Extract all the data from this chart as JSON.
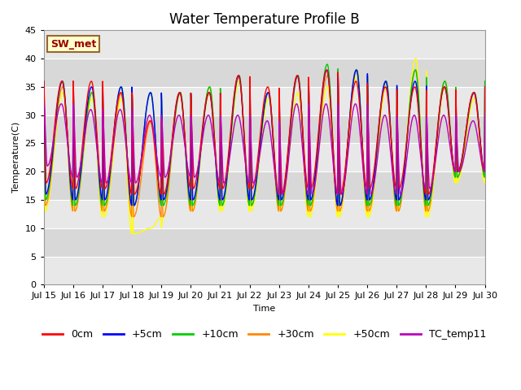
{
  "title": "Water Temperature Profile B",
  "xlabel": "Time",
  "ylabel": "Temperature(C)",
  "xlim": [
    0,
    15
  ],
  "ylim": [
    0,
    45
  ],
  "yticks": [
    0,
    5,
    10,
    15,
    20,
    25,
    30,
    35,
    40,
    45
  ],
  "xtick_labels": [
    "Jul 15",
    "Jul 16",
    "Jul 17",
    "Jul 18",
    "Jul 19",
    "Jul 20",
    "Jul 21",
    "Jul 22",
    "Jul 23",
    "Jul 24",
    "Jul 25",
    "Jul 26",
    "Jul 27",
    "Jul 28",
    "Jul 29",
    "Jul 30"
  ],
  "series_colors": {
    "0cm": "#ff0000",
    "+5cm": "#0000ff",
    "+10cm": "#00cc00",
    "+30cm": "#ff8800",
    "+50cm": "#ffff00",
    "TC_temp11": "#bb00bb"
  },
  "annotation_text": "SW_met",
  "annotation_color": "#990000",
  "annotation_bg": "#ffffcc",
  "annotation_border": "#996633",
  "band_colors": [
    "#e8e8e8",
    "#d8d8d8"
  ],
  "grid_color": "#ffffff",
  "title_fontsize": 12,
  "axis_fontsize": 8,
  "legend_fontsize": 9,
  "peaks_0cm": [
    36,
    36,
    34,
    29,
    34,
    34,
    37,
    35,
    37,
    38,
    36,
    35,
    35,
    35,
    34
  ],
  "troughs_0cm": [
    18,
    17,
    17,
    16,
    16,
    17,
    17,
    17,
    16,
    17,
    16,
    17,
    17,
    16,
    20
  ],
  "peaks_5cm": [
    36,
    35,
    35,
    34,
    34,
    34,
    37,
    34,
    37,
    38,
    38,
    36,
    36,
    35,
    34
  ],
  "troughs_5cm": [
    16,
    15,
    15,
    14,
    15,
    15,
    15,
    15,
    15,
    15,
    14,
    15,
    15,
    15,
    20
  ],
  "peaks_10cm": [
    36,
    34,
    35,
    34,
    34,
    35,
    37,
    34,
    37,
    39,
    38,
    36,
    38,
    36,
    34
  ],
  "troughs_10cm": [
    15,
    14,
    14,
    14,
    14,
    14,
    14,
    14,
    14,
    14,
    14,
    14,
    14,
    14,
    19
  ],
  "peaks_30cm": [
    35,
    34,
    34,
    29,
    34,
    35,
    37,
    34,
    37,
    37,
    38,
    36,
    38,
    36,
    34
  ],
  "troughs_30cm": [
    14,
    13,
    13,
    12,
    12,
    13,
    14,
    14,
    13,
    13,
    13,
    13,
    13,
    13,
    19
  ],
  "peaks_50cm": [
    34,
    33,
    33,
    10,
    34,
    34,
    36,
    33,
    34,
    35,
    37,
    35,
    40,
    35,
    33
  ],
  "troughs_50cm": [
    13,
    13,
    12,
    9,
    12,
    13,
    13,
    13,
    13,
    12,
    12,
    12,
    13,
    12,
    18
  ],
  "peaks_tc": [
    32,
    31,
    31,
    30,
    30,
    30,
    30,
    29,
    32,
    32,
    32,
    30,
    30,
    30,
    29
  ],
  "troughs_tc": [
    21,
    19,
    18,
    18,
    19,
    19,
    18,
    18,
    16,
    16,
    16,
    16,
    16,
    17,
    20
  ]
}
